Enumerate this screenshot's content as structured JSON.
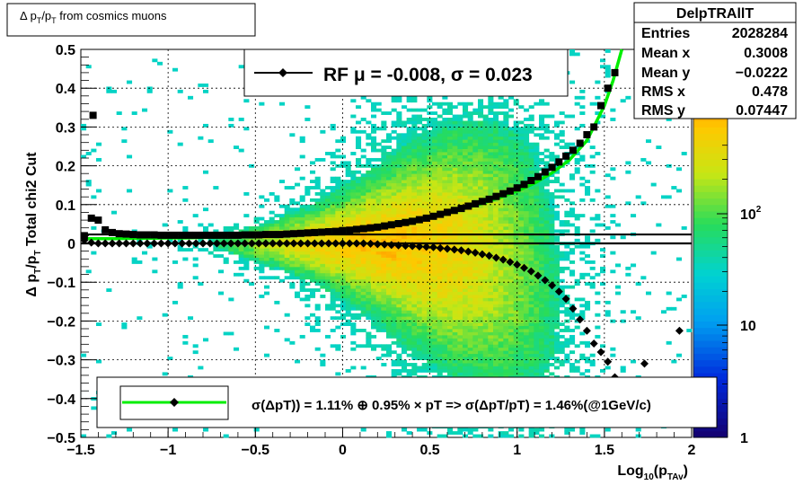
{
  "chart_data": {
    "type": "heatmap",
    "title": "Δ pT/pT from cosmics muons",
    "title_parts": {
      "prefix": "Δ p",
      "sub1": "T",
      "mid": "/p",
      "sub2": "T",
      "suffix": " from cosmics muons"
    },
    "xlabel": "Log10(pTAv)",
    "xlabel_parts": {
      "a": "Log",
      "sub": "10",
      "b": "(p",
      "sub2": "TAv",
      "c": ")"
    },
    "ylabel": "Δ pT/pT  Total chi2 Cut",
    "ylabel_parts": {
      "a": "Δ p",
      "sub1": "T",
      "b": "/p",
      "sub2": "T",
      "c": "  Total chi2 Cut"
    },
    "xlim": [
      -1.5,
      2.0
    ],
    "ylim": [
      -0.5,
      0.5
    ],
    "x_ticks": [
      -1.5,
      -1,
      -0.5,
      0,
      0.5,
      1,
      1.5,
      2
    ],
    "x_tick_labels": [
      "−1.5",
      "−1",
      "−0.5",
      "0",
      "0.5",
      "1",
      "1.5",
      "2"
    ],
    "y_ticks": [
      0.5,
      0.4,
      0.3,
      0.2,
      0.1,
      0,
      -0.1,
      -0.2,
      -0.3,
      -0.4,
      -0.5
    ],
    "y_tick_labels": [
      "0.5",
      "0.4",
      "0.3",
      "0.2",
      "0.1",
      "0",
      "−0.1",
      "−0.2",
      "−0.3",
      "−0.4",
      "−0.5"
    ],
    "z_scale": "log",
    "z_ticks": [
      {
        "label": "1"
      },
      {
        "label": "10"
      },
      {
        "label": "10",
        "sup": "2"
      }
    ],
    "grid": true,
    "stats": {
      "name": "DelpTRAllT",
      "rows": [
        {
          "label": "Entries",
          "value": "2028284"
        },
        {
          "label": "Mean x",
          "value": "0.3008"
        },
        {
          "label": "Mean y",
          "value": "−0.0222"
        },
        {
          "label": "RMS x",
          "value": "0.478"
        },
        {
          "label": "RMS y",
          "value": "0.07447"
        }
      ]
    },
    "legend_top": {
      "text": "RF μ = -0.008, σ =   0.023"
    },
    "legend_bottom": {
      "text": "σ(ΔpT)) =  1.11% ⊕  0.95% × pT => σ(ΔpT/pT) =  1.46%(@1GeV/c)"
    },
    "series": [
      {
        "role": "sigma_points",
        "x": [
          -1.48,
          -1.44,
          -1.4,
          -1.36,
          -1.32,
          -1.28,
          -1.24,
          -1.2,
          -1.16,
          -1.12,
          -1.08,
          -1.04,
          -1.0,
          -0.96,
          -0.92,
          -0.88,
          -0.84,
          -0.8,
          -0.76,
          -0.72,
          -0.68,
          -0.64,
          -0.6,
          -0.56,
          -0.52,
          -0.48,
          -0.44,
          -0.4,
          -0.36,
          -0.32,
          -0.28,
          -0.24,
          -0.2,
          -0.16,
          -0.12,
          -0.08,
          -0.04,
          0.0,
          0.04,
          0.08,
          0.12,
          0.16,
          0.2,
          0.24,
          0.28,
          0.32,
          0.36,
          0.4,
          0.44,
          0.48,
          0.52,
          0.56,
          0.6,
          0.64,
          0.68,
          0.72,
          0.76,
          0.8,
          0.84,
          0.88,
          0.92,
          0.96,
          1.0,
          1.04,
          1.08,
          1.12,
          1.16,
          1.2,
          1.24,
          1.28,
          1.32,
          1.36,
          1.4,
          1.44,
          1.48,
          1.52,
          1.56
        ],
        "y": [
          0.02,
          0.065,
          0.06,
          0.035,
          0.028,
          0.025,
          0.024,
          0.023,
          0.022,
          0.022,
          0.022,
          0.021,
          0.021,
          0.021,
          0.021,
          0.021,
          0.021,
          0.021,
          0.021,
          0.021,
          0.021,
          0.021,
          0.021,
          0.022,
          0.022,
          0.022,
          0.023,
          0.023,
          0.023,
          0.024,
          0.025,
          0.026,
          0.027,
          0.028,
          0.029,
          0.03,
          0.031,
          0.033,
          0.034,
          0.036,
          0.038,
          0.04,
          0.042,
          0.045,
          0.048,
          0.051,
          0.054,
          0.057,
          0.061,
          0.065,
          0.07,
          0.075,
          0.08,
          0.085,
          0.09,
          0.096,
          0.102,
          0.108,
          0.114,
          0.121,
          0.128,
          0.135,
          0.143,
          0.152,
          0.162,
          0.172,
          0.184,
          0.196,
          0.21,
          0.225,
          0.24,
          0.258,
          0.28,
          0.3,
          0.355,
          0.4,
          0.44
        ],
        "outliers": [
          {
            "x": -1.43,
            "y": 0.33
          }
        ]
      },
      {
        "role": "mean_points",
        "x": [
          -1.48,
          -1.44,
          -1.4,
          -1.36,
          -1.32,
          -1.28,
          -1.24,
          -1.2,
          -1.16,
          -1.12,
          -1.08,
          -1.04,
          -1.0,
          -0.96,
          -0.92,
          -0.88,
          -0.84,
          -0.8,
          -0.76,
          -0.72,
          -0.68,
          -0.64,
          -0.6,
          -0.56,
          -0.52,
          -0.48,
          -0.44,
          -0.4,
          -0.36,
          -0.32,
          -0.28,
          -0.24,
          -0.2,
          -0.16,
          -0.12,
          -0.08,
          -0.04,
          0.0,
          0.04,
          0.08,
          0.12,
          0.16,
          0.2,
          0.24,
          0.28,
          0.32,
          0.36,
          0.4,
          0.44,
          0.48,
          0.52,
          0.56,
          0.6,
          0.64,
          0.68,
          0.72,
          0.76,
          0.8,
          0.84,
          0.88,
          0.92,
          0.96,
          1.0,
          1.04,
          1.08,
          1.12,
          1.16,
          1.2,
          1.24,
          1.28,
          1.32,
          1.36,
          1.4,
          1.44,
          1.48,
          1.52,
          1.56,
          1.6,
          1.73,
          1.93
        ],
        "y": [
          0.008,
          0.002,
          0.0,
          0.0,
          0.0,
          0.0,
          0.0,
          0.0,
          0.0,
          0.0,
          0.0,
          0.0,
          0.0,
          0.0,
          0.0,
          0.0,
          0.0,
          0.0,
          0.0,
          0.0,
          0.0,
          0.0,
          0.0,
          0.0,
          0.0,
          0.0,
          0.0,
          0.0,
          0.0,
          0.0,
          0.0,
          0.0,
          0.0,
          0.0,
          0.0,
          0.0,
          0.0,
          0.0,
          0.0,
          0.0,
          0.0,
          -0.001,
          -0.002,
          -0.003,
          -0.004,
          -0.005,
          -0.006,
          -0.007,
          -0.008,
          -0.009,
          -0.01,
          -0.012,
          -0.014,
          -0.016,
          -0.018,
          -0.021,
          -0.024,
          -0.028,
          -0.032,
          -0.037,
          -0.042,
          -0.048,
          -0.055,
          -0.063,
          -0.072,
          -0.083,
          -0.095,
          -0.108,
          -0.124,
          -0.143,
          -0.168,
          -0.196,
          -0.225,
          -0.258,
          -0.28,
          -0.305,
          -0.345,
          -0.4,
          -0.31,
          -0.225
        ]
      },
      {
        "role": "resolution_fit",
        "color": "#00ee00",
        "x": [
          -1.5,
          -1.4,
          -1.3,
          -1.2,
          -1.1,
          -1.0,
          -0.9,
          -0.8,
          -0.7,
          -0.6,
          -0.5,
          -0.4,
          -0.3,
          -0.2,
          -0.1,
          0.0,
          0.1,
          0.2,
          0.3,
          0.4,
          0.5,
          0.6,
          0.7,
          0.8,
          0.9,
          1.0,
          1.1,
          1.2,
          1.3,
          1.4,
          1.5,
          1.55,
          1.6
        ],
        "y": [
          0.012,
          0.012,
          0.012,
          0.013,
          0.013,
          0.014,
          0.014,
          0.015,
          0.016,
          0.017,
          0.019,
          0.02,
          0.023,
          0.025,
          0.029,
          0.033,
          0.038,
          0.044,
          0.051,
          0.06,
          0.068,
          0.08,
          0.09,
          0.103,
          0.118,
          0.135,
          0.155,
          0.182,
          0.215,
          0.265,
          0.355,
          0.42,
          0.5
        ]
      },
      {
        "role": "reference_lines",
        "color": "#000000",
        "y": [
          0.0,
          0.023
        ]
      }
    ]
  }
}
